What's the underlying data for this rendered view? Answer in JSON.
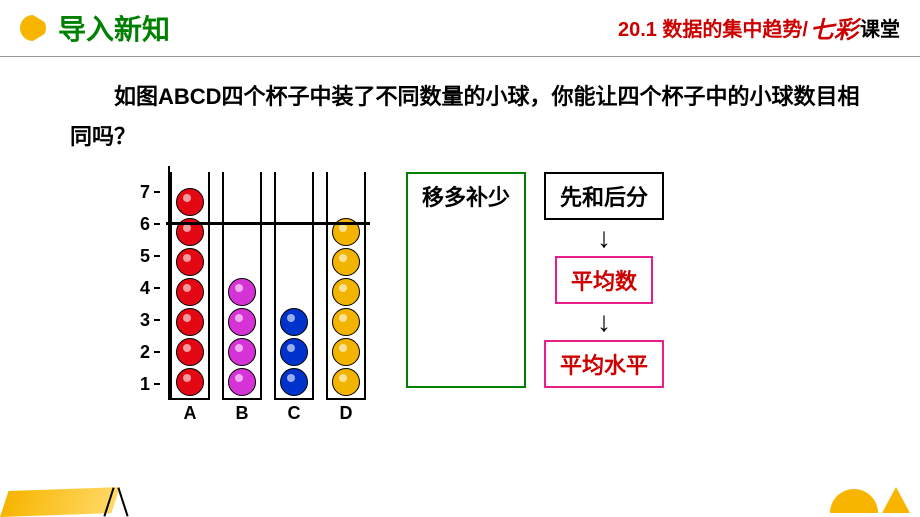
{
  "header": {
    "section_title": "导入新知",
    "chapter": "20.1 数据的集中趋势/",
    "brand_fancy": "七彩",
    "brand_plain": "课堂"
  },
  "question_text": "如图ABCD四个杯子中装了不同数量的小球，你能让四个杯子中的小球数目相同吗？",
  "chart": {
    "y_max": 7,
    "y_ticks": [
      "1",
      "2",
      "3",
      "4",
      "5",
      "6",
      "7"
    ],
    "ball_size": 28,
    "ball_gap": 2,
    "cup_padding": 2,
    "cup_top_offset": 6,
    "average_line_at": 5.5,
    "cups": [
      {
        "label": "A",
        "count": 7,
        "color": "#e30613"
      },
      {
        "label": "B",
        "count": 4,
        "color": "#d633d6"
      },
      {
        "label": "C",
        "count": 3,
        "color": "#0033cc"
      },
      {
        "label": "D",
        "count": 6,
        "color": "#f2b400"
      }
    ]
  },
  "concepts": {
    "left_box": "移多补少",
    "flow": {
      "top": "先和后分",
      "mid": "平均数",
      "bot": "平均水平"
    }
  }
}
